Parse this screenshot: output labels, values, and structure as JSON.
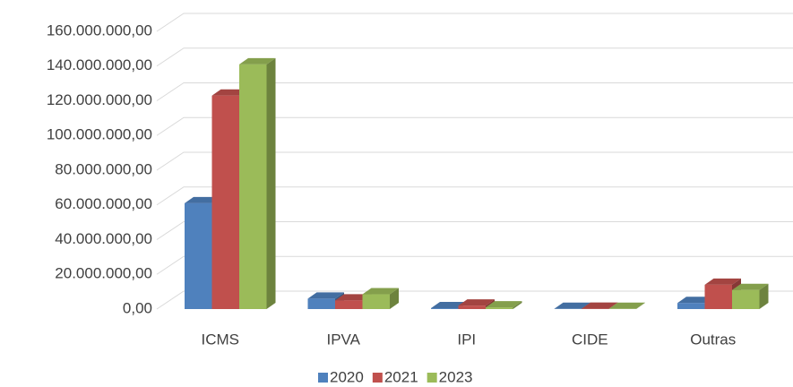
{
  "chart_data": {
    "type": "bar3d",
    "categories": [
      "ICMS",
      "IPVA",
      "IPI",
      "CIDE",
      "Outras"
    ],
    "series": [
      {
        "name": "2020",
        "color": "#4f81bd",
        "values": [
          61000000,
          6000000,
          500000,
          100000,
          3500000
        ]
      },
      {
        "name": "2021",
        "color": "#c0504d",
        "values": [
          123000000,
          5000000,
          2000000,
          200000,
          14000000
        ]
      },
      {
        "name": "2023",
        "color": "#9bbb59",
        "values": [
          141000000,
          8500000,
          1000000,
          100000,
          11000000
        ]
      }
    ],
    "ylim": [
      0,
      160000000
    ],
    "yticks": [
      {
        "value": 0,
        "label": "0,00"
      },
      {
        "value": 20000000,
        "label": "20.000.000,00"
      },
      {
        "value": 40000000,
        "label": "40.000.000,00"
      },
      {
        "value": 60000000,
        "label": "60.000.000,00"
      },
      {
        "value": 80000000,
        "label": "80.000.000,00"
      },
      {
        "value": 100000000,
        "label": "100.000.000,00"
      },
      {
        "value": 120000000,
        "label": "120.000.000,00"
      },
      {
        "value": 140000000,
        "label": "140.000.000,00"
      },
      {
        "value": 160000000,
        "label": "160.000.000,00"
      }
    ],
    "grid": true,
    "legend": "bottom"
  }
}
